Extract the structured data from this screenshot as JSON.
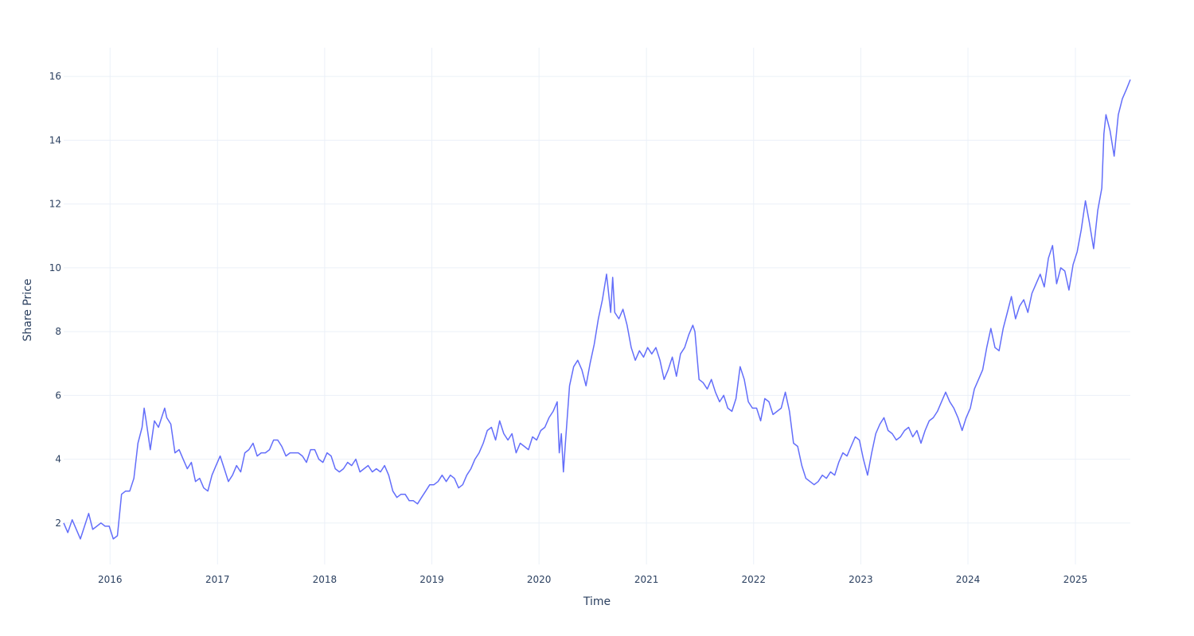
{
  "chart_data": {
    "type": "line",
    "title": "",
    "xlabel": "Time",
    "ylabel": "Share Price",
    "xlim": [
      "2015-07-27",
      "2025-07-07"
    ],
    "ylim": [
      0.7,
      16.9
    ],
    "grid": true,
    "x_ticks": [
      "2016",
      "2017",
      "2018",
      "2019",
      "2020",
      "2021",
      "2022",
      "2023",
      "2024",
      "2025"
    ],
    "y_ticks": [
      "2",
      "4",
      "6",
      "8",
      "10",
      "12",
      "14",
      "16"
    ],
    "colors": {
      "series": "#636efa",
      "grid": "#ebf0f8",
      "text": "#2a3f5f"
    },
    "series": [
      {
        "x": [
          "2015-07-27",
          "2015-08-10",
          "2015-08-25",
          "2015-09-08",
          "2015-09-22",
          "2015-10-06",
          "2015-10-20",
          "2015-11-03",
          "2015-11-17",
          "2015-12-01",
          "2015-12-15",
          "2015-12-29",
          "2016-01-12",
          "2016-01-26",
          "2016-02-09",
          "2016-02-23",
          "2016-03-08",
          "2016-03-22",
          "2016-04-05",
          "2016-04-19",
          "2016-04-26",
          "2016-05-03",
          "2016-05-17",
          "2016-05-31",
          "2016-06-14",
          "2016-06-28",
          "2016-07-05",
          "2016-07-12",
          "2016-07-26",
          "2016-08-09",
          "2016-08-23",
          "2016-09-06",
          "2016-09-20",
          "2016-10-04",
          "2016-10-18",
          "2016-11-01",
          "2016-11-15",
          "2016-11-29",
          "2016-12-13",
          "2016-12-27",
          "2017-01-10",
          "2017-01-24",
          "2017-02-07",
          "2017-02-21",
          "2017-03-07",
          "2017-03-21",
          "2017-04-04",
          "2017-04-18",
          "2017-05-02",
          "2017-05-16",
          "2017-05-30",
          "2017-06-13",
          "2017-06-27",
          "2017-07-11",
          "2017-07-25",
          "2017-08-08",
          "2017-08-22",
          "2017-09-05",
          "2017-09-19",
          "2017-10-03",
          "2017-10-17",
          "2017-10-31",
          "2017-11-14",
          "2017-11-28",
          "2017-12-12",
          "2017-12-26",
          "2018-01-09",
          "2018-01-23",
          "2018-02-06",
          "2018-02-20",
          "2018-03-06",
          "2018-03-20",
          "2018-04-03",
          "2018-04-17",
          "2018-05-01",
          "2018-05-15",
          "2018-05-29",
          "2018-06-12",
          "2018-06-26",
          "2018-07-10",
          "2018-07-24",
          "2018-08-07",
          "2018-08-21",
          "2018-09-04",
          "2018-09-18",
          "2018-10-02",
          "2018-10-16",
          "2018-10-30",
          "2018-11-13",
          "2018-11-27",
          "2018-12-11",
          "2018-12-25",
          "2019-01-08",
          "2019-01-22",
          "2019-02-05",
          "2019-02-19",
          "2019-03-05",
          "2019-03-19",
          "2019-04-02",
          "2019-04-16",
          "2019-04-30",
          "2019-05-14",
          "2019-05-28",
          "2019-06-11",
          "2019-06-25",
          "2019-07-09",
          "2019-07-23",
          "2019-08-06",
          "2019-08-20",
          "2019-09-03",
          "2019-09-17",
          "2019-10-01",
          "2019-10-15",
          "2019-10-29",
          "2019-11-12",
          "2019-11-26",
          "2019-12-10",
          "2019-12-24",
          "2020-01-07",
          "2020-01-21",
          "2020-02-04",
          "2020-02-18",
          "2020-03-03",
          "2020-03-10",
          "2020-03-17",
          "2020-03-24",
          "2020-03-31",
          "2020-04-14",
          "2020-04-28",
          "2020-05-12",
          "2020-05-26",
          "2020-06-09",
          "2020-06-23",
          "2020-07-07",
          "2020-07-21",
          "2020-08-04",
          "2020-08-18",
          "2020-09-01",
          "2020-09-08",
          "2020-09-15",
          "2020-09-29",
          "2020-10-13",
          "2020-10-27",
          "2020-11-10",
          "2020-11-24",
          "2020-12-08",
          "2020-12-22",
          "2021-01-05",
          "2021-01-19",
          "2021-02-02",
          "2021-02-16",
          "2021-03-02",
          "2021-03-16",
          "2021-03-30",
          "2021-04-13",
          "2021-04-27",
          "2021-05-11",
          "2021-05-25",
          "2021-06-08",
          "2021-06-15",
          "2021-06-29",
          "2021-07-13",
          "2021-07-27",
          "2021-08-10",
          "2021-08-24",
          "2021-09-07",
          "2021-09-21",
          "2021-10-05",
          "2021-10-19",
          "2021-11-02",
          "2021-11-16",
          "2021-11-30",
          "2021-12-14",
          "2021-12-28",
          "2022-01-11",
          "2022-01-25",
          "2022-02-08",
          "2022-02-22",
          "2022-03-08",
          "2022-03-22",
          "2022-04-05",
          "2022-04-19",
          "2022-05-03",
          "2022-05-17",
          "2022-05-31",
          "2022-06-14",
          "2022-06-28",
          "2022-07-12",
          "2022-07-26",
          "2022-08-09",
          "2022-08-23",
          "2022-09-06",
          "2022-09-20",
          "2022-10-04",
          "2022-10-18",
          "2022-11-01",
          "2022-11-15",
          "2022-11-29",
          "2022-12-13",
          "2022-12-27",
          "2023-01-10",
          "2023-01-24",
          "2023-02-07",
          "2023-02-21",
          "2023-03-07",
          "2023-03-21",
          "2023-04-04",
          "2023-04-18",
          "2023-05-02",
          "2023-05-16",
          "2023-05-30",
          "2023-06-13",
          "2023-06-27",
          "2023-07-11",
          "2023-07-25",
          "2023-08-08",
          "2023-08-22",
          "2023-09-05",
          "2023-09-19",
          "2023-10-03",
          "2023-10-17",
          "2023-10-31",
          "2023-11-14",
          "2023-11-28",
          "2023-12-12",
          "2023-12-26",
          "2024-01-09",
          "2024-01-23",
          "2024-02-06",
          "2024-02-20",
          "2024-03-05",
          "2024-03-19",
          "2024-04-02",
          "2024-04-16",
          "2024-04-30",
          "2024-05-14",
          "2024-05-28",
          "2024-06-11",
          "2024-06-25",
          "2024-07-09",
          "2024-07-23",
          "2024-08-06",
          "2024-08-20",
          "2024-09-03",
          "2024-09-17",
          "2024-10-01",
          "2024-10-15",
          "2024-10-29",
          "2024-11-12",
          "2024-11-26",
          "2024-12-10",
          "2024-12-24",
          "2025-01-07",
          "2025-01-21",
          "2025-02-04",
          "2025-02-18",
          "2025-03-04",
          "2025-03-18",
          "2025-04-01",
          "2025-04-08",
          "2025-04-15",
          "2025-04-29",
          "2025-05-13",
          "2025-05-27",
          "2025-06-10",
          "2025-06-24",
          "2025-07-07"
        ],
        "y": [
          2.0,
          1.7,
          2.1,
          1.8,
          1.5,
          1.9,
          2.3,
          1.8,
          1.9,
          2.0,
          1.9,
          1.9,
          1.5,
          1.6,
          2.9,
          3.0,
          3.0,
          3.4,
          4.5,
          5.0,
          5.6,
          5.2,
          4.3,
          5.2,
          5.0,
          5.4,
          5.6,
          5.3,
          5.1,
          4.2,
          4.3,
          4.0,
          3.7,
          3.9,
          3.3,
          3.4,
          3.1,
          3.0,
          3.5,
          3.8,
          4.1,
          3.7,
          3.3,
          3.5,
          3.8,
          3.6,
          4.2,
          4.3,
          4.5,
          4.1,
          4.2,
          4.2,
          4.3,
          4.6,
          4.6,
          4.4,
          4.1,
          4.2,
          4.2,
          4.2,
          4.1,
          3.9,
          4.3,
          4.3,
          4.0,
          3.9,
          4.2,
          4.1,
          3.7,
          3.6,
          3.7,
          3.9,
          3.8,
          4.0,
          3.6,
          3.7,
          3.8,
          3.6,
          3.7,
          3.6,
          3.8,
          3.5,
          3.0,
          2.8,
          2.9,
          2.9,
          2.7,
          2.7,
          2.6,
          2.8,
          3.0,
          3.2,
          3.2,
          3.3,
          3.5,
          3.3,
          3.5,
          3.4,
          3.1,
          3.2,
          3.5,
          3.7,
          4.0,
          4.2,
          4.5,
          4.9,
          5.0,
          4.6,
          5.2,
          4.8,
          4.6,
          4.8,
          4.2,
          4.5,
          4.4,
          4.3,
          4.7,
          4.6,
          4.9,
          5.0,
          5.3,
          5.5,
          5.8,
          4.2,
          4.8,
          3.6,
          4.5,
          6.3,
          6.9,
          7.1,
          6.8,
          6.3,
          7.0,
          7.6,
          8.4,
          9.0,
          9.8,
          8.6,
          9.7,
          8.6,
          8.4,
          8.7,
          8.2,
          7.5,
          7.1,
          7.4,
          7.2,
          7.5,
          7.3,
          7.5,
          7.1,
          6.5,
          6.8,
          7.2,
          6.6,
          7.3,
          7.5,
          7.9,
          8.2,
          8.0,
          6.5,
          6.4,
          6.2,
          6.5,
          6.1,
          5.8,
          6.0,
          5.6,
          5.5,
          5.9,
          6.9,
          6.5,
          5.8,
          5.6,
          5.6,
          5.2,
          5.9,
          5.8,
          5.4,
          5.5,
          5.6,
          6.1,
          5.5,
          4.5,
          4.4,
          3.8,
          3.4,
          3.3,
          3.2,
          3.3,
          3.5,
          3.4,
          3.6,
          3.5,
          3.9,
          4.2,
          4.1,
          4.4,
          4.7,
          4.6,
          4.0,
          3.5,
          4.2,
          4.8,
          5.1,
          5.3,
          4.9,
          4.8,
          4.6,
          4.7,
          4.9,
          5.0,
          4.7,
          4.9,
          4.5,
          4.9,
          5.2,
          5.3,
          5.5,
          5.8,
          6.1,
          5.8,
          5.6,
          5.3,
          4.9,
          5.3,
          5.6,
          6.2,
          6.5,
          6.8,
          7.5,
          8.1,
          7.5,
          7.4,
          8.1,
          8.6,
          9.1,
          8.4,
          8.8,
          9.0,
          8.6,
          9.2,
          9.5,
          9.8,
          9.4,
          10.3,
          10.7,
          9.5,
          10.0,
          9.9,
          9.3,
          10.1,
          10.5,
          11.2,
          12.1,
          11.4,
          10.6,
          11.8,
          12.5,
          14.2,
          14.8,
          14.3,
          13.5,
          14.8,
          15.3,
          15.6,
          15.9
        ]
      }
    ]
  }
}
